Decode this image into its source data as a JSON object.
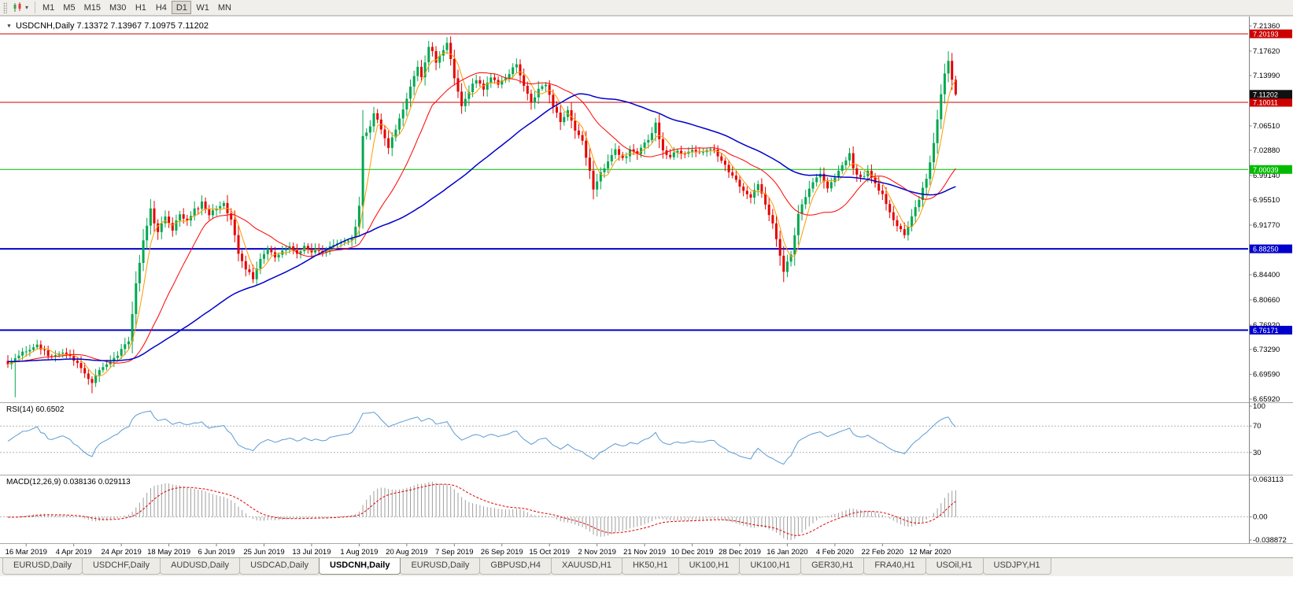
{
  "toolbar": {
    "dropdown_glyph": "▾",
    "timeframes": [
      "M1",
      "M5",
      "M15",
      "M30",
      "H1",
      "H4",
      "D1",
      "W1",
      "MN"
    ],
    "active_timeframe": "D1"
  },
  "chart": {
    "collapse_icon": "▼",
    "header": "USDCNH,Daily 7.13372 7.13967 7.10975 7.11202",
    "symbol": "USDCNH",
    "timeframe": "Daily"
  },
  "colors": {
    "up": "#00A84F",
    "down": "#E60000",
    "rsi": "#5B9BD5",
    "macd_hist": "#9E9E9E",
    "macd_signal": "#E00000",
    "axis_line": "#808080",
    "separator": "#A8A8A8",
    "level_dash": "#B4B4B4"
  },
  "chart_data": {
    "type": "candlestick",
    "symbol": "USDCNH",
    "timeframe": "Daily",
    "num_candles": 260,
    "last_candle": {
      "open": 7.13372,
      "high": 7.13967,
      "low": 7.10975,
      "close": 7.11202
    },
    "current_price_tag": {
      "price": 7.11202,
      "label": "7.11202",
      "bg": "#111111"
    },
    "price_axis": {
      "max": 7.2206,
      "min": 6.6592,
      "ticks": [
        "7.21360",
        "7.17620",
        "7.13990",
        "7.06510",
        "7.02880",
        "6.99140",
        "6.95510",
        "6.91770",
        "6.84400",
        "6.80660",
        "6.76920",
        "6.73290",
        "6.69590",
        "6.65920"
      ]
    },
    "horizontal_lines": [
      {
        "price": 7.20193,
        "label": "7.20193",
        "color": "#CC0000",
        "width": 1
      },
      {
        "price": 7.10011,
        "label": "7.10011",
        "color": "#CC0000",
        "width": 1
      },
      {
        "price": 7.00039,
        "label": "7.00039",
        "color": "#00BB00",
        "width": 1
      },
      {
        "price": 6.8825,
        "label": "6.88250",
        "color": "#0000CC",
        "width": 2
      },
      {
        "price": 6.76171,
        "label": "6.76171",
        "color": "#0000CC",
        "width": 2
      }
    ],
    "moving_averages": [
      {
        "period": 5,
        "color": "#FF9900",
        "width": 1
      },
      {
        "period": 20,
        "color": "#FF0000",
        "width": 1
      },
      {
        "period": 60,
        "color": "#0000CC",
        "width": 1.5
      }
    ],
    "x_axis": {
      "first_tick_index": 5,
      "tick_step": 13,
      "dates": [
        "16 Mar 2019",
        "4 Apr 2019",
        "24 Apr 2019",
        "18 May 2019",
        "6 Jun 2019",
        "25 Jun 2019",
        "13 Jul 2019",
        "1 Aug 2019",
        "20 Aug 2019",
        "7 Sep 2019",
        "26 Sep 2019",
        "15 Oct 2019",
        "2 Nov 2019",
        "21 Nov 2019",
        "10 Dec 2019",
        "28 Dec 2019",
        "16 Jan 2020",
        "4 Feb 2020",
        "22 Feb 2020",
        "12 Mar 2020"
      ]
    },
    "close_waypoints": [
      [
        0,
        6.712
      ],
      [
        4,
        6.728
      ],
      [
        8,
        6.738
      ],
      [
        12,
        6.72
      ],
      [
        16,
        6.728
      ],
      [
        20,
        6.708
      ],
      [
        23,
        6.684
      ],
      [
        26,
        6.708
      ],
      [
        30,
        6.724
      ],
      [
        33,
        6.746
      ],
      [
        35,
        6.83
      ],
      [
        37,
        6.895
      ],
      [
        39,
        6.94
      ],
      [
        41,
        6.905
      ],
      [
        43,
        6.93
      ],
      [
        45,
        6.912
      ],
      [
        47,
        6.936
      ],
      [
        49,
        6.922
      ],
      [
        51,
        6.94
      ],
      [
        53,
        6.95
      ],
      [
        55,
        6.934
      ],
      [
        57,
        6.94
      ],
      [
        59,
        6.948
      ],
      [
        61,
        6.926
      ],
      [
        63,
        6.878
      ],
      [
        65,
        6.852
      ],
      [
        67,
        6.84
      ],
      [
        69,
        6.87
      ],
      [
        71,
        6.884
      ],
      [
        73,
        6.872
      ],
      [
        75,
        6.878
      ],
      [
        77,
        6.888
      ],
      [
        79,
        6.876
      ],
      [
        81,
        6.884
      ],
      [
        83,
        6.88
      ],
      [
        86,
        6.878
      ],
      [
        89,
        6.886
      ],
      [
        92,
        6.892
      ],
      [
        94,
        6.9
      ],
      [
        95,
        6.915
      ],
      [
        96,
        6.945
      ],
      [
        97,
        7.05
      ],
      [
        99,
        7.064
      ],
      [
        100,
        7.085
      ],
      [
        102,
        7.06
      ],
      [
        104,
        7.035
      ],
      [
        106,
        7.06
      ],
      [
        108,
        7.09
      ],
      [
        110,
        7.125
      ],
      [
        112,
        7.15
      ],
      [
        113,
        7.138
      ],
      [
        115,
        7.185
      ],
      [
        117,
        7.162
      ],
      [
        119,
        7.178
      ],
      [
        120,
        7.19
      ],
      [
        122,
        7.135
      ],
      [
        124,
        7.095
      ],
      [
        126,
        7.115
      ],
      [
        128,
        7.135
      ],
      [
        130,
        7.118
      ],
      [
        132,
        7.14
      ],
      [
        134,
        7.125
      ],
      [
        136,
        7.138
      ],
      [
        139,
        7.156
      ],
      [
        141,
        7.125
      ],
      [
        143,
        7.1
      ],
      [
        145,
        7.118
      ],
      [
        147,
        7.128
      ],
      [
        149,
        7.095
      ],
      [
        151,
        7.072
      ],
      [
        153,
        7.088
      ],
      [
        155,
        7.06
      ],
      [
        157,
        7.042
      ],
      [
        159,
        6.998
      ],
      [
        160,
        6.972
      ],
      [
        162,
        6.995
      ],
      [
        164,
        7.015
      ],
      [
        166,
        7.028
      ],
      [
        168,
        7.015
      ],
      [
        170,
        7.03
      ],
      [
        172,
        7.022
      ],
      [
        174,
        7.038
      ],
      [
        176,
        7.052
      ],
      [
        177,
        7.068
      ],
      [
        179,
        7.028
      ],
      [
        181,
        7.018
      ],
      [
        183,
        7.028
      ],
      [
        185,
        7.022
      ],
      [
        187,
        7.03
      ],
      [
        189,
        7.025
      ],
      [
        191,
        7.032
      ],
      [
        193,
        7.028
      ],
      [
        195,
        7.012
      ],
      [
        197,
        6.998
      ],
      [
        199,
        6.985
      ],
      [
        201,
        6.97
      ],
      [
        203,
        6.958
      ],
      [
        205,
        6.976
      ],
      [
        207,
        6.95
      ],
      [
        209,
        6.918
      ],
      [
        211,
        6.872
      ],
      [
        212,
        6.848
      ],
      [
        214,
        6.875
      ],
      [
        216,
        6.932
      ],
      [
        218,
        6.96
      ],
      [
        220,
        6.98
      ],
      [
        222,
        6.992
      ],
      [
        224,
        6.97
      ],
      [
        226,
        6.988
      ],
      [
        228,
        7.005
      ],
      [
        230,
        7.025
      ],
      [
        231,
        7.0
      ],
      [
        233,
        6.988
      ],
      [
        235,
        6.998
      ],
      [
        237,
        6.98
      ],
      [
        239,
        6.962
      ],
      [
        241,
        6.938
      ],
      [
        243,
        6.916
      ],
      [
        245,
        6.905
      ],
      [
        247,
        6.93
      ],
      [
        249,
        6.955
      ],
      [
        251,
        6.988
      ],
      [
        253,
        7.04
      ],
      [
        254,
        7.075
      ],
      [
        255,
        7.11
      ],
      [
        256,
        7.142
      ],
      [
        257,
        7.16
      ],
      [
        258,
        7.134
      ],
      [
        259,
        7.112
      ]
    ],
    "forced_wicks": [
      {
        "index": 2,
        "low": 6.662
      },
      {
        "index": 23,
        "low": 6.668
      },
      {
        "index": 120,
        "high": 7.197
      },
      {
        "index": 160,
        "low": 6.963
      },
      {
        "index": 212,
        "low": 6.833
      },
      {
        "index": 257,
        "high": 7.176
      }
    ]
  },
  "rsi": {
    "label": "RSI(14) 60.6502",
    "period": 14,
    "current": 60.6502,
    "levels": [
      100,
      70,
      30
    ]
  },
  "macd": {
    "label": "MACD(12,26,9) 0.038136 0.029113",
    "fast": 12,
    "slow": 26,
    "signal": 9,
    "value": 0.038136,
    "signal_value": 0.029113,
    "axis_max": 0.063113,
    "axis_min": -0.038872,
    "axis_labels": [
      "0.063113",
      "0.00",
      "-0.038872"
    ]
  },
  "tabs": [
    {
      "label": "EURUSD,Daily",
      "active": false
    },
    {
      "label": "USDCHF,Daily",
      "active": false
    },
    {
      "label": "AUDUSD,Daily",
      "active": false
    },
    {
      "label": "USDCAD,Daily",
      "active": false
    },
    {
      "label": "USDCNH,Daily",
      "active": true
    },
    {
      "label": "EURUSD,Daily",
      "active": false
    },
    {
      "label": "GBPUSD,H4",
      "active": false
    },
    {
      "label": "XAUUSD,H1",
      "active": false
    },
    {
      "label": "HK50,H1",
      "active": false
    },
    {
      "label": "UK100,H1",
      "active": false
    },
    {
      "label": "UK100,H1",
      "active": false
    },
    {
      "label": "GER30,H1",
      "active": false
    },
    {
      "label": "FRA40,H1",
      "active": false
    },
    {
      "label": "USOil,H1",
      "active": false
    },
    {
      "label": "USDJPY,H1",
      "active": false
    }
  ]
}
